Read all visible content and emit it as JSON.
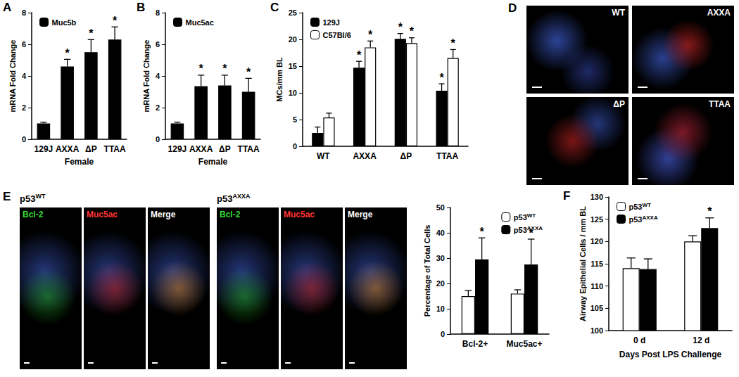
{
  "chart_data": [
    {
      "label": "A",
      "type": "bar",
      "categories": [
        "129J",
        "AXXA",
        "ΔP",
        "TTAA"
      ],
      "xlabel": "Female",
      "ylabel": "mRNA Fold Change",
      "ylim": [
        0,
        8
      ],
      "yticks": [
        0,
        2,
        4,
        6,
        8
      ],
      "legend": "upper left",
      "series": [
        {
          "name": "Muc5b",
          "color": "#000000",
          "values": [
            1.0,
            4.6,
            5.5,
            6.3
          ],
          "errors": [
            0.08,
            0.45,
            0.8,
            0.8
          ],
          "marks": [
            null,
            "*",
            "*",
            "*"
          ]
        }
      ]
    },
    {
      "label": "B",
      "type": "bar",
      "categories": [
        "129J",
        "AXXA",
        "ΔP",
        "TTAA"
      ],
      "xlabel": "Female",
      "ylabel": "mRNA Fold Change",
      "ylim": [
        0,
        8
      ],
      "yticks": [
        0,
        2,
        4,
        6,
        8
      ],
      "legend": "upper left",
      "series": [
        {
          "name": "Muc5ac",
          "color": "#000000",
          "values": [
            1.0,
            3.35,
            3.4,
            3.0
          ],
          "errors": [
            0.08,
            0.7,
            0.65,
            0.85
          ],
          "marks": [
            null,
            "*",
            "*",
            "*"
          ]
        }
      ]
    },
    {
      "label": "C",
      "type": "bar",
      "categories": [
        "WT",
        "AXXA",
        "ΔP",
        "TTAA"
      ],
      "ylabel": "MCs/mm BL",
      "ylim": [
        0,
        25
      ],
      "yticks": [
        0,
        5,
        10,
        15,
        20,
        25
      ],
      "legend": "upper left",
      "series": [
        {
          "name": "129J",
          "color": "#000000",
          "values": [
            2.5,
            14.7,
            20.1,
            10.4
          ],
          "errors": [
            1.1,
            1.2,
            1.0,
            1.3
          ],
          "marks": [
            null,
            "*",
            "*",
            "*"
          ]
        },
        {
          "name": "C57Bl/6",
          "color": "#ffffff",
          "values": [
            5.4,
            18.5,
            19.3,
            16.5
          ],
          "errors": [
            0.8,
            1.2,
            1.0,
            1.6
          ],
          "marks": [
            null,
            "*",
            "*",
            "*"
          ]
        }
      ]
    },
    {
      "type": "bar",
      "categories": [
        "Bcl-2+",
        "Muc5ac+"
      ],
      "ylabel": "Percentage of Total Cells",
      "ylim": [
        0,
        50
      ],
      "yticks": [
        0,
        10,
        20,
        30,
        40,
        50
      ],
      "legend": "upper right",
      "series": [
        {
          "name": "p53WT",
          "color": "#ffffff",
          "values": [
            15,
            16
          ],
          "errors": [
            2.2,
            1.5
          ]
        },
        {
          "name": "p53AXXA",
          "color": "#000000",
          "values": [
            29.5,
            27.5
          ],
          "errors": [
            8.5,
            10
          ],
          "marks": [
            "*",
            "*"
          ]
        }
      ]
    },
    {
      "label": "F",
      "type": "bar",
      "categories": [
        "0 d",
        "12 d"
      ],
      "xlabel": "Days Post LPS Challenge",
      "ylabel": "Airway Epithelial Cells / mm BL",
      "ylim": [
        100,
        130
      ],
      "yticks": [
        100,
        105,
        110,
        115,
        120,
        125,
        130
      ],
      "legend": "upper left",
      "series": [
        {
          "name": "p53WT",
          "color": "#ffffff",
          "values": [
            114,
            120
          ],
          "errors": [
            2.3,
            1.3
          ]
        },
        {
          "name": "p53AXXA",
          "color": "#000000",
          "values": [
            113.8,
            123
          ],
          "errors": [
            2.3,
            2.3
          ],
          "marks": [
            null,
            "*"
          ]
        }
      ]
    }
  ],
  "image_panels": [
    {
      "label": "D",
      "tiles": [
        "WT",
        "AXXA",
        "ΔP",
        "TTAA"
      ]
    },
    {
      "label": "E",
      "groups": [
        {
          "title": "p53WT",
          "tiles": [
            "Bcl-2",
            "Muc5ac",
            "Merge"
          ]
        },
        {
          "title": "p53AXXA",
          "tiles": [
            "Bcl-2",
            "Muc5ac",
            "Merge"
          ]
        }
      ]
    }
  ]
}
